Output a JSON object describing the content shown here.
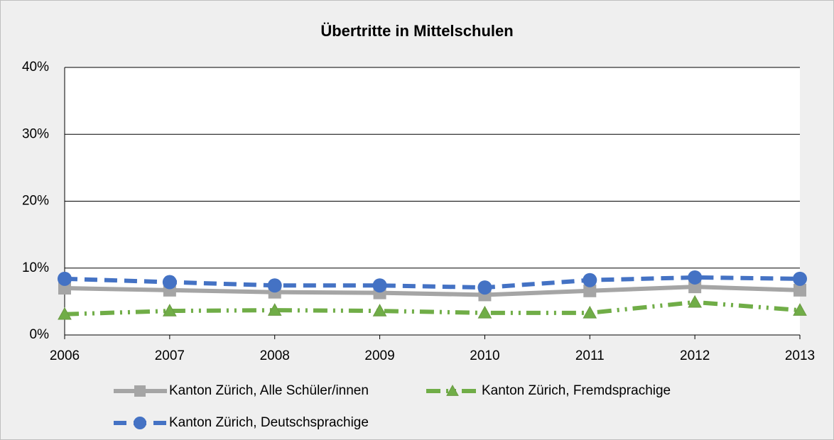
{
  "chart_data": {
    "type": "line",
    "title": "Übertritte in Mittelschulen",
    "x": [
      2006,
      2007,
      2008,
      2009,
      2010,
      2011,
      2012,
      2013
    ],
    "xlim": [
      2006,
      2013
    ],
    "xticks": [
      2006,
      2007,
      2008,
      2009,
      2010,
      2011,
      2012,
      2013
    ],
    "ylim": [
      0,
      40
    ],
    "yticks": [
      {
        "value": 0,
        "label": "0%"
      },
      {
        "value": 10,
        "label": "10%"
      },
      {
        "value": 20,
        "label": "20%"
      },
      {
        "value": 30,
        "label": "30%"
      },
      {
        "value": 40,
        "label": "40%"
      }
    ],
    "grid": true,
    "legend": "bottom",
    "series": [
      {
        "name": "Kanton Zürich, Alle Schüler/innen",
        "color": "#a5a5a5",
        "marker": "square",
        "dash": "solid",
        "values": [
          7.0,
          6.7,
          6.4,
          6.3,
          6.0,
          6.6,
          7.2,
          6.7
        ]
      },
      {
        "name": "Kanton Zürich, Fremdsprachige",
        "color": "#70ad47",
        "marker": "triangle",
        "dash": "dashdotdot",
        "values": [
          3.1,
          3.6,
          3.7,
          3.6,
          3.3,
          3.3,
          4.9,
          3.7
        ]
      },
      {
        "name": "Kanton Zürich, Deutschsprachige",
        "color": "#4472c4",
        "marker": "circle",
        "dash": "dash",
        "values": [
          8.4,
          7.9,
          7.4,
          7.4,
          7.1,
          8.2,
          8.6,
          8.4
        ]
      }
    ]
  }
}
